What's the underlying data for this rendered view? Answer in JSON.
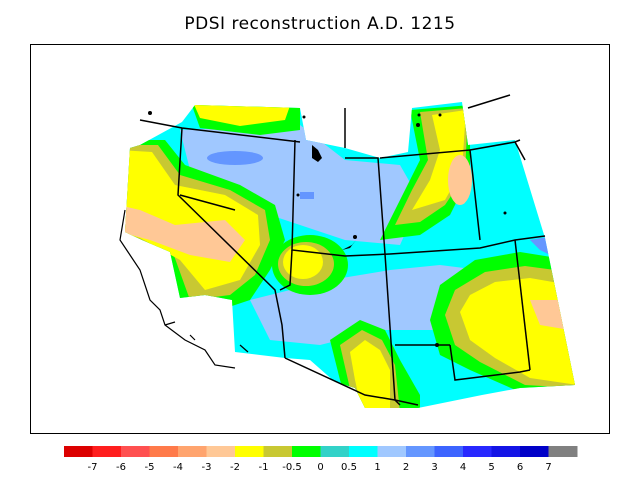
{
  "map": {
    "title": "PDSI reconstruction A.D. 1215"
  },
  "legend": {
    "colors": [
      "#dc0000",
      "#ff1e1e",
      "#ff5050",
      "#ff7a4a",
      "#ffa46e",
      "#ffc896",
      "#ffff00",
      "#c8c832",
      "#00ff00",
      "#32d2c8",
      "#00ffff",
      "#a0c8ff",
      "#6496ff",
      "#3c64ff",
      "#2828ff",
      "#1414e6",
      "#0000c8",
      "#808080"
    ],
    "tick_labels": [
      "-7",
      "-6",
      "-5",
      "-4",
      "-3",
      "-2",
      "-1",
      "-0.5",
      "0",
      "0.5",
      "1",
      "2",
      "3",
      "4",
      "5",
      "6",
      "7"
    ]
  }
}
